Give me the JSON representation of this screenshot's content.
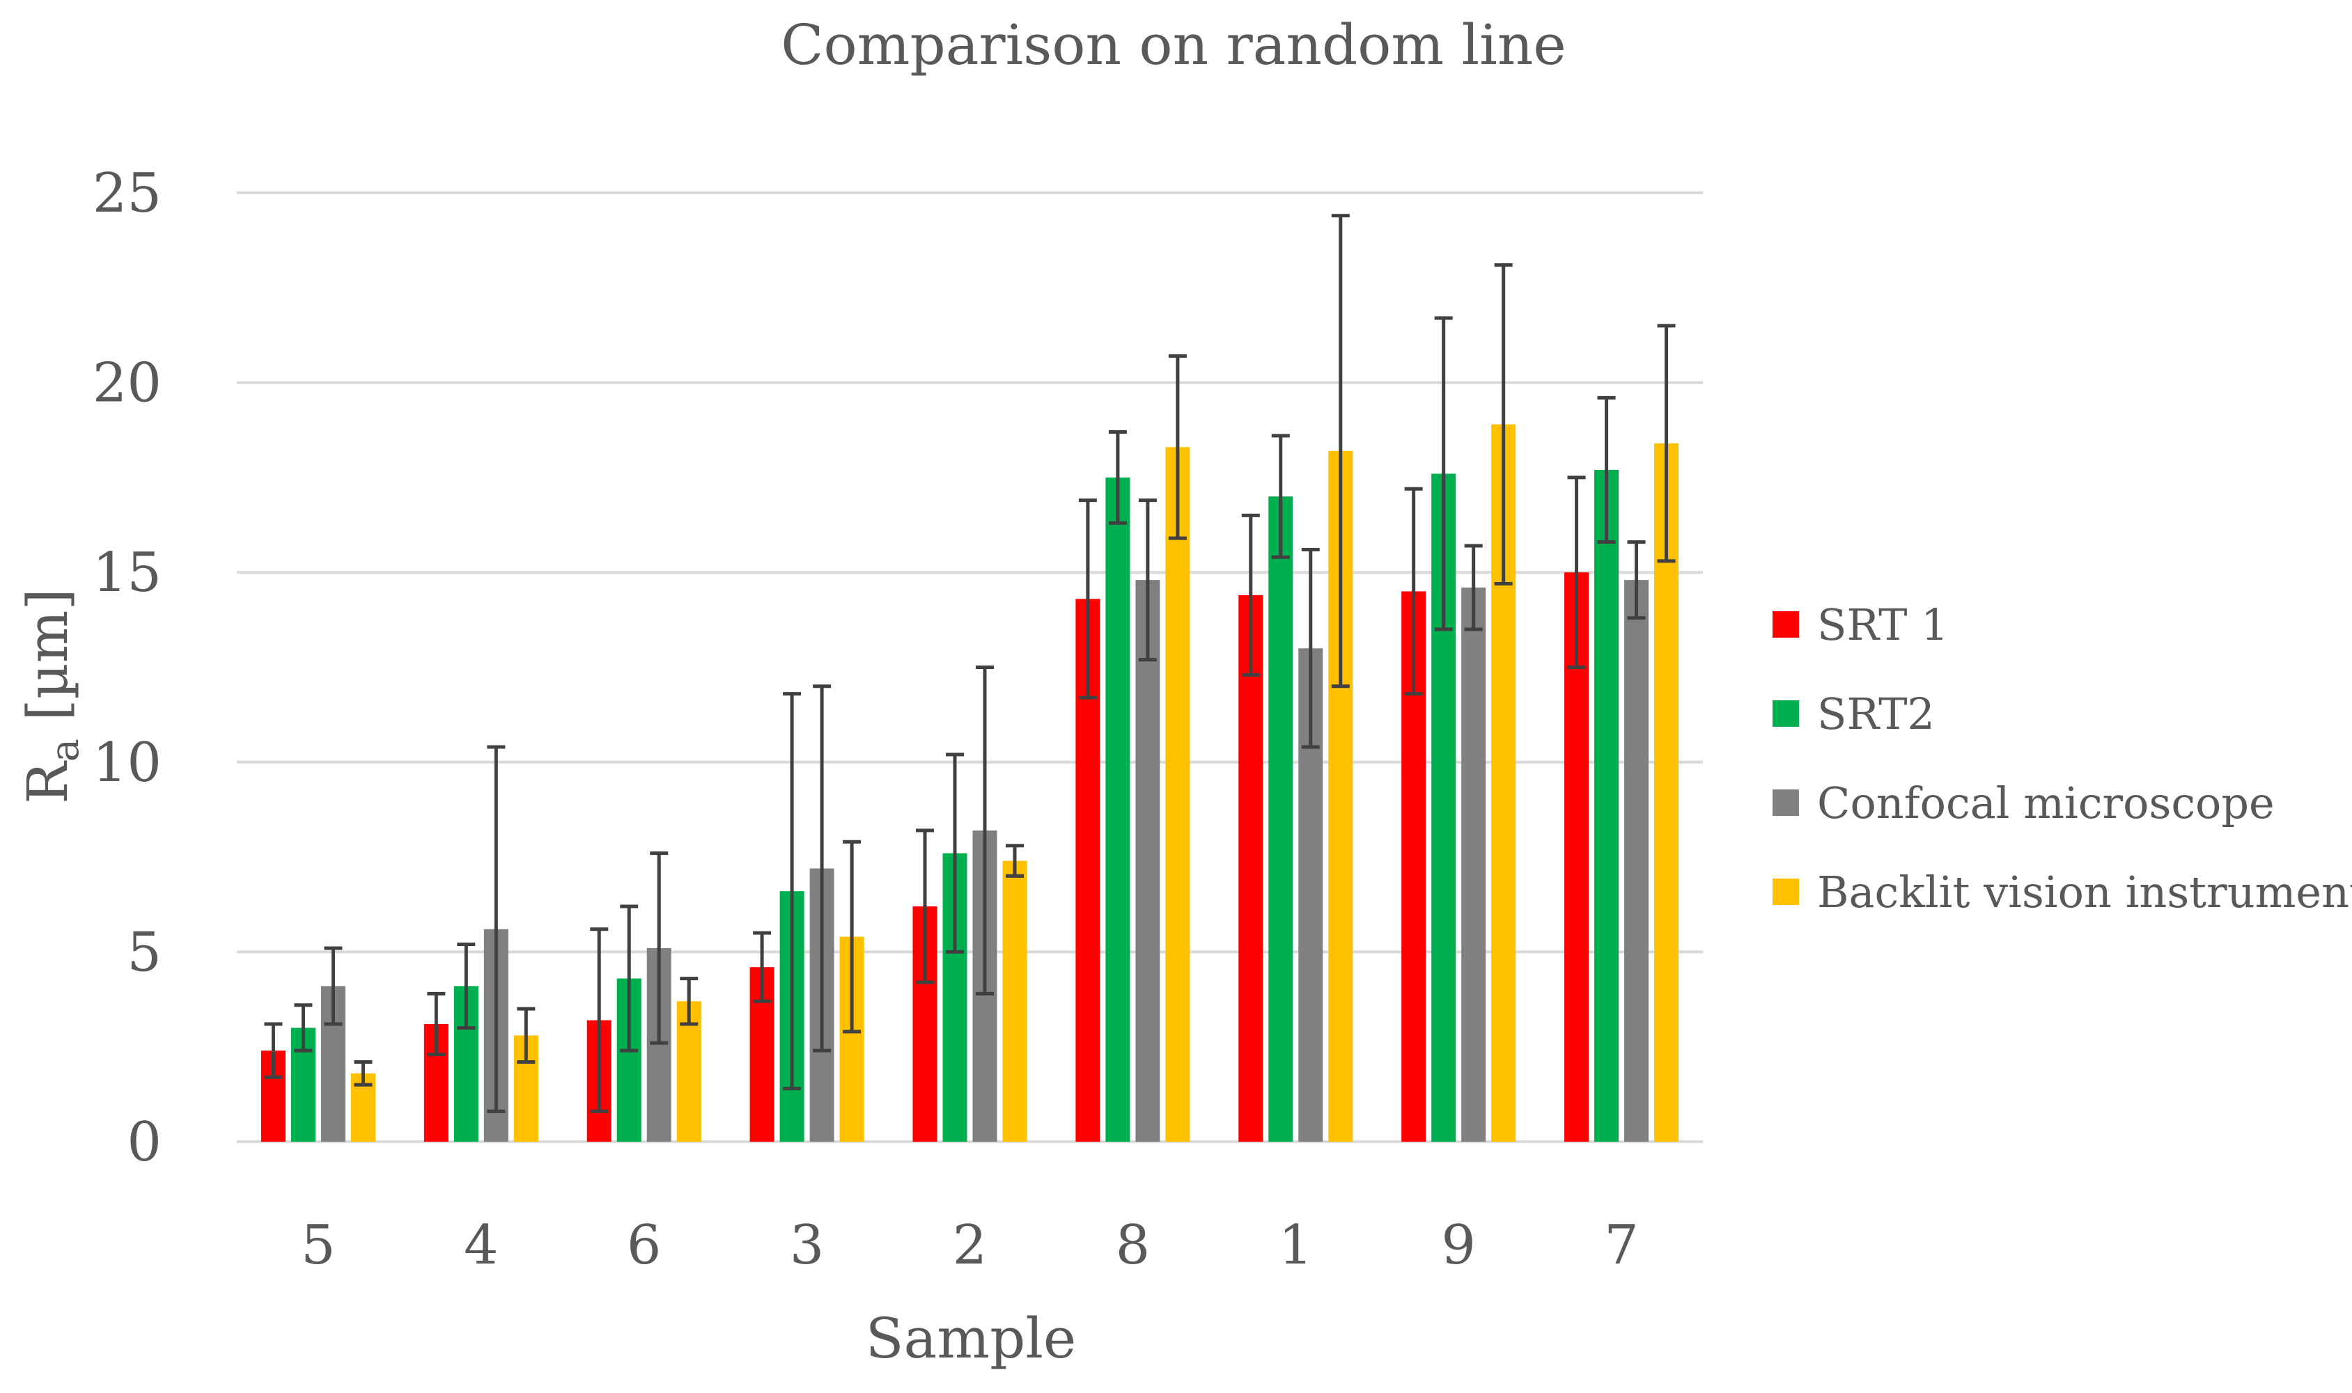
{
  "chart_data": {
    "type": "bar",
    "title": "Comparison on random line",
    "xlabel": "Sample",
    "ylabel_main": "R",
    "ylabel_sub": "a",
    "ylabel_unit": " [µm]",
    "ylim": [
      0,
      25
    ],
    "yticks": [
      0,
      5,
      10,
      15,
      20,
      25
    ],
    "grid": true,
    "legend_position": "right",
    "categories": [
      "5",
      "4",
      "6",
      "3",
      "2",
      "8",
      "1",
      "9",
      "7"
    ],
    "series": [
      {
        "name": "SRT 1",
        "color": "#ff0000",
        "values": [
          2.4,
          3.1,
          3.2,
          4.6,
          6.2,
          14.3,
          14.4,
          14.5,
          15.0
        ],
        "errors": [
          0.7,
          0.8,
          2.4,
          0.9,
          2.0,
          2.6,
          2.1,
          2.7,
          2.5
        ]
      },
      {
        "name": "SRT2",
        "color": "#00b050",
        "values": [
          3.0,
          4.1,
          4.3,
          6.6,
          7.6,
          17.5,
          17.0,
          17.6,
          17.7
        ],
        "errors": [
          0.6,
          1.1,
          1.9,
          5.2,
          2.6,
          1.2,
          1.6,
          4.1,
          1.9
        ]
      },
      {
        "name": "Confocal microscope",
        "color": "#808080",
        "values": [
          4.1,
          5.6,
          5.1,
          7.2,
          8.2,
          14.8,
          13.0,
          14.6,
          14.8
        ],
        "errors": [
          1.0,
          4.8,
          2.5,
          4.8,
          4.3,
          2.1,
          2.6,
          1.1,
          1.0
        ]
      },
      {
        "name": "Backlit vision instrument",
        "color": "#ffc000",
        "values": [
          1.8,
          2.8,
          3.7,
          5.4,
          7.4,
          18.3,
          18.2,
          18.9,
          18.4
        ],
        "errors": [
          0.3,
          0.7,
          0.6,
          2.5,
          0.4,
          2.4,
          6.2,
          4.2,
          3.1
        ]
      }
    ]
  }
}
